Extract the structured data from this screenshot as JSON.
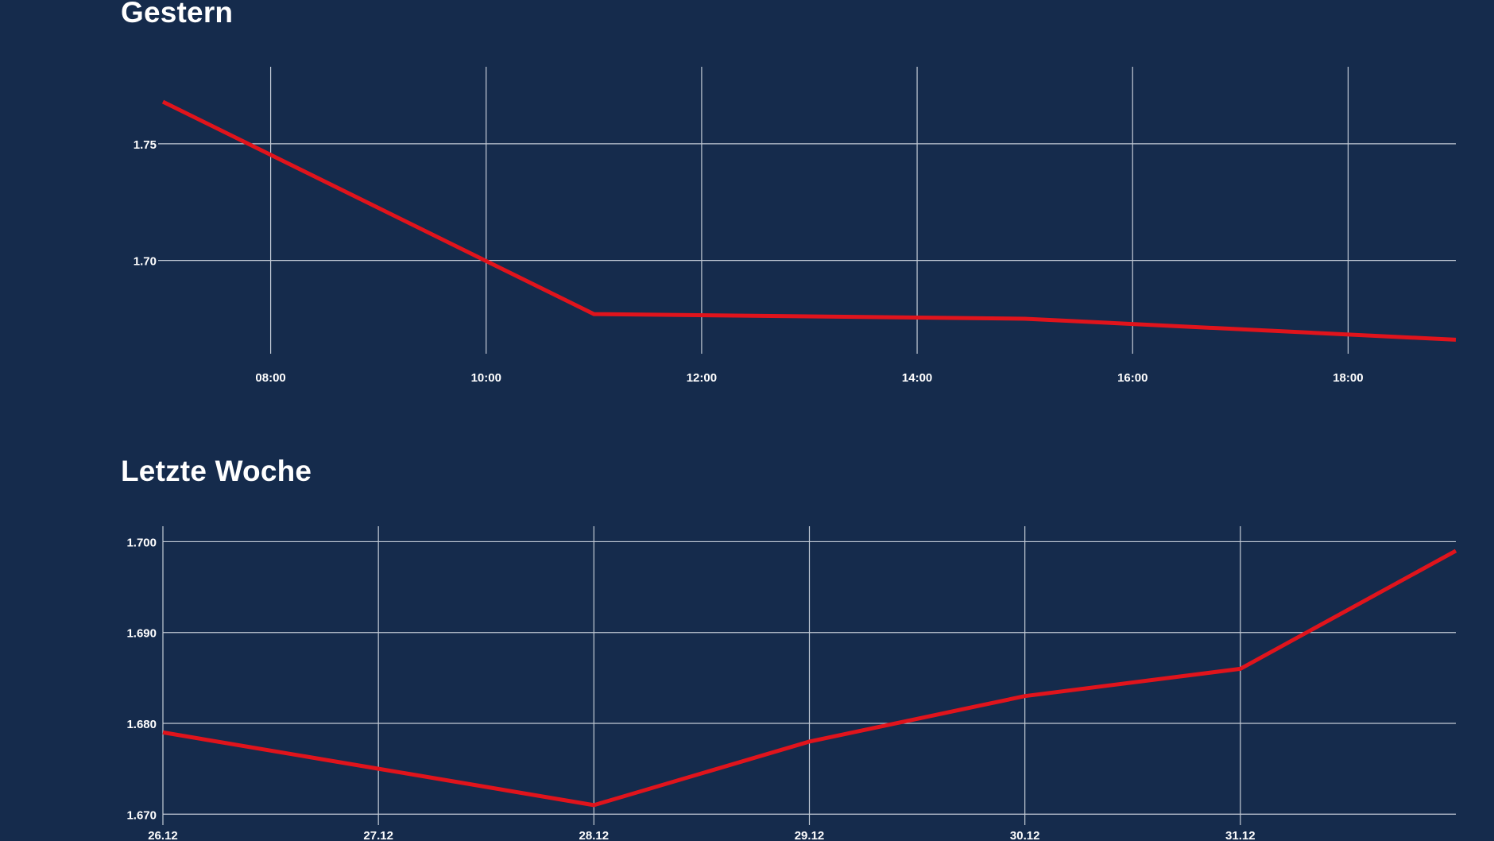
{
  "chart_data": [
    {
      "type": "line",
      "title": "Gestern",
      "x": [
        "07:00",
        "11:00",
        "15:00",
        "19:00"
      ],
      "x_ticks": [
        "08:00",
        "10:00",
        "12:00",
        "14:00",
        "16:00",
        "18:00"
      ],
      "xlim": [
        "07:00",
        "19:00"
      ],
      "series": [
        {
          "values": [
            1.768,
            1.677,
            1.675,
            1.666
          ]
        }
      ],
      "y_ticks": [
        "1.75",
        "1.70"
      ],
      "ylim": [
        1.66,
        1.783
      ],
      "xlabel": "",
      "ylabel": "",
      "grid": true,
      "legend": "none",
      "line_color": "#e0141c"
    },
    {
      "type": "line",
      "title": "Letzte Woche",
      "x": [
        "26.12",
        "27.12",
        "28.12",
        "29.12",
        "30.12",
        "31.12",
        "01.01"
      ],
      "x_ticks": [
        "26.12",
        "27.12",
        "28.12",
        "29.12",
        "30.12",
        "31.12"
      ],
      "series": [
        {
          "values": [
            1.679,
            1.675,
            1.671,
            1.678,
            1.683,
            1.686,
            1.699
          ]
        }
      ],
      "y_ticks": [
        "1.700",
        "1.690",
        "1.680",
        "1.670"
      ],
      "ylim": [
        1.6695,
        1.7017
      ],
      "xlabel": "",
      "ylabel": "",
      "grid": true,
      "legend": "none",
      "line_color": "#e0141c"
    }
  ]
}
